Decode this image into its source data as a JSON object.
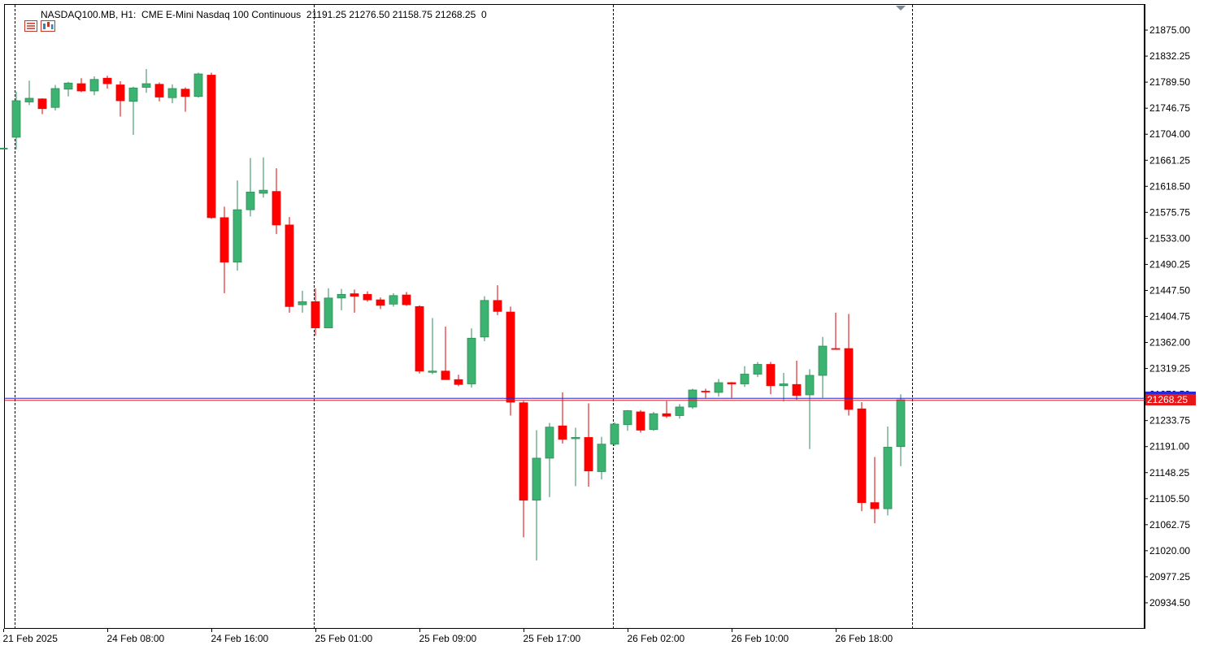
{
  "header": {
    "symbol": "NASDAQ100.MB, H1:",
    "description": "CME E-Mini Nasdaq 100 Continuous",
    "ohlc": "21191.25 21276.50 21158.75 21268.25",
    "volume": "0"
  },
  "icons": [
    "menu-icon",
    "chart-properties-icon",
    "scroll-marker-icon"
  ],
  "colors": {
    "bull": "#3cb371",
    "bear": "#ff0000",
    "wick_bull": "#2e8b57",
    "wick_bear": "#e00000",
    "bid_line": "#2424d0",
    "ask_line": "#e02020",
    "price_tag": "#e81818",
    "separator": "#000000"
  },
  "current_price_label": "21268.25",
  "chart_data": {
    "type": "candlestick",
    "title": "",
    "xlabel": "",
    "ylabel": "",
    "ylim": [
      20891.75,
      21917.75
    ],
    "y_ticks": [
      "21875.00",
      "21832.25",
      "21789.50",
      "21746.75",
      "21704.00",
      "21661.25",
      "21618.50",
      "21575.75",
      "21533.00",
      "21490.25",
      "21447.50",
      "21404.75",
      "21362.00",
      "21319.25",
      "21276.50",
      "21233.75",
      "21191.00",
      "21148.25",
      "21105.50",
      "21062.75",
      "21020.00",
      "20977.25",
      "20934.50"
    ],
    "x_labels": [
      {
        "index": 0,
        "label": "21 Feb 2025"
      },
      {
        "index": 8,
        "label": "24 Feb 08:00"
      },
      {
        "index": 16,
        "label": "24 Feb 16:00"
      },
      {
        "index": 24,
        "label": "25 Feb 01:00"
      },
      {
        "index": 32,
        "label": "25 Feb 09:00"
      },
      {
        "index": 40,
        "label": "25 Feb 17:00"
      },
      {
        "index": 48,
        "label": "26 Feb 02:00"
      },
      {
        "index": 56,
        "label": "26 Feb 10:00"
      },
      {
        "index": 64,
        "label": "26 Feb 18:00"
      }
    ],
    "day_separators": [
      0.9,
      23.9,
      46.9,
      69.9
    ],
    "current_price": 21268.25,
    "candles": [
      {
        "o": 21681.0,
        "h": 21682.0,
        "l": 21680.0,
        "c": 21681.0
      },
      {
        "o": 21699.0,
        "h": 21774.0,
        "l": 21679.0,
        "c": 21759.0
      },
      {
        "o": 21757.0,
        "h": 21792.0,
        "l": 21752.0,
        "c": 21763.0
      },
      {
        "o": 21762.0,
        "h": 21763.0,
        "l": 21737.0,
        "c": 21746.0
      },
      {
        "o": 21748.0,
        "h": 21785.0,
        "l": 21743.0,
        "c": 21779.0
      },
      {
        "o": 21778.0,
        "h": 21790.0,
        "l": 21766.0,
        "c": 21788.0
      },
      {
        "o": 21787.0,
        "h": 21796.0,
        "l": 21773.0,
        "c": 21775.0
      },
      {
        "o": 21775.0,
        "h": 21799.0,
        "l": 21768.0,
        "c": 21794.0
      },
      {
        "o": 21796.0,
        "h": 21800.0,
        "l": 21779.0,
        "c": 21787.0
      },
      {
        "o": 21785.0,
        "h": 21791.0,
        "l": 21733.0,
        "c": 21759.0
      },
      {
        "o": 21758.0,
        "h": 21782.0,
        "l": 21703.0,
        "c": 21780.0
      },
      {
        "o": 21781.0,
        "h": 21811.0,
        "l": 21772.0,
        "c": 21787.0
      },
      {
        "o": 21786.0,
        "h": 21789.0,
        "l": 21758.0,
        "c": 21765.0
      },
      {
        "o": 21764.0,
        "h": 21786.0,
        "l": 21755.0,
        "c": 21779.0
      },
      {
        "o": 21778.0,
        "h": 21781.0,
        "l": 21741.0,
        "c": 21766.0
      },
      {
        "o": 21766.0,
        "h": 21805.0,
        "l": 21764.0,
        "c": 21803.0
      },
      {
        "o": 21801.0,
        "h": 21805.0,
        "l": 21565.0,
        "c": 21567.0
      },
      {
        "o": 21567.0,
        "h": 21585.0,
        "l": 21443.0,
        "c": 21494.0
      },
      {
        "o": 21494.0,
        "h": 21628.0,
        "l": 21480.0,
        "c": 21580.0
      },
      {
        "o": 21580.0,
        "h": 21665.0,
        "l": 21569.0,
        "c": 21609.0
      },
      {
        "o": 21607.0,
        "h": 21666.0,
        "l": 21600.0,
        "c": 21612.0
      },
      {
        "o": 21610.0,
        "h": 21648.0,
        "l": 21540.0,
        "c": 21555.0
      },
      {
        "o": 21555.0,
        "h": 21568.0,
        "l": 21411.0,
        "c": 21421.0
      },
      {
        "o": 21424.0,
        "h": 21447.0,
        "l": 21411.0,
        "c": 21429.0
      },
      {
        "o": 21429.0,
        "h": 21451.0,
        "l": 21373.0,
        "c": 21386.0
      },
      {
        "o": 21386.0,
        "h": 21451.0,
        "l": 21386.0,
        "c": 21435.0
      },
      {
        "o": 21435.0,
        "h": 21450.0,
        "l": 21415.0,
        "c": 21441.0
      },
      {
        "o": 21442.0,
        "h": 21449.0,
        "l": 21411.0,
        "c": 21438.0
      },
      {
        "o": 21441.0,
        "h": 21446.0,
        "l": 21429.0,
        "c": 21432.0
      },
      {
        "o": 21432.0,
        "h": 21436.0,
        "l": 21417.0,
        "c": 21423.0
      },
      {
        "o": 21425.0,
        "h": 21443.0,
        "l": 21421.0,
        "c": 21439.0
      },
      {
        "o": 21440.0,
        "h": 21445.0,
        "l": 21422.0,
        "c": 21424.0
      },
      {
        "o": 21421.0,
        "h": 21423.0,
        "l": 21311.0,
        "c": 21315.0
      },
      {
        "o": 21313.0,
        "h": 21402.0,
        "l": 21310.0,
        "c": 21315.0
      },
      {
        "o": 21315.0,
        "h": 21388.0,
        "l": 21307.0,
        "c": 21301.0
      },
      {
        "o": 21301.0,
        "h": 21309.0,
        "l": 21290.0,
        "c": 21293.0
      },
      {
        "o": 21294.0,
        "h": 21385.0,
        "l": 21288.0,
        "c": 21369.0
      },
      {
        "o": 21371.0,
        "h": 21438.0,
        "l": 21364.0,
        "c": 21431.0
      },
      {
        "o": 21431.0,
        "h": 21456.0,
        "l": 21407.0,
        "c": 21413.0
      },
      {
        "o": 21412.0,
        "h": 21421.0,
        "l": 21242.0,
        "c": 21264.0
      },
      {
        "o": 21263.0,
        "h": 21266.0,
        "l": 21042.0,
        "c": 21103.0
      },
      {
        "o": 21103.0,
        "h": 21218.0,
        "l": 21004.0,
        "c": 21172.0
      },
      {
        "o": 21172.0,
        "h": 21230.0,
        "l": 21108.0,
        "c": 21223.0
      },
      {
        "o": 21225.0,
        "h": 21280.0,
        "l": 21196.0,
        "c": 21203.0
      },
      {
        "o": 21204.0,
        "h": 21222.0,
        "l": 21126.0,
        "c": 21206.0
      },
      {
        "o": 21206.0,
        "h": 21262.0,
        "l": 21125.0,
        "c": 21151.0
      },
      {
        "o": 21150.0,
        "h": 21207.0,
        "l": 21137.0,
        "c": 21195.0
      },
      {
        "o": 21195.0,
        "h": 21231.0,
        "l": 21192.0,
        "c": 21228.0
      },
      {
        "o": 21227.0,
        "h": 21251.0,
        "l": 21217.0,
        "c": 21250.0
      },
      {
        "o": 21248.0,
        "h": 21251.0,
        "l": 21214.0,
        "c": 21218.0
      },
      {
        "o": 21219.0,
        "h": 21248.0,
        "l": 21217.0,
        "c": 21245.0
      },
      {
        "o": 21245.0,
        "h": 21266.0,
        "l": 21238.0,
        "c": 21241.0
      },
      {
        "o": 21242.0,
        "h": 21261.0,
        "l": 21237.0,
        "c": 21256.0
      },
      {
        "o": 21256.0,
        "h": 21286.0,
        "l": 21253.0,
        "c": 21284.0
      },
      {
        "o": 21282.0,
        "h": 21286.0,
        "l": 21271.0,
        "c": 21281.0
      },
      {
        "o": 21280.0,
        "h": 21302.0,
        "l": 21273.0,
        "c": 21296.0
      },
      {
        "o": 21296.0,
        "h": 21297.0,
        "l": 21271.0,
        "c": 21294.0
      },
      {
        "o": 21294.0,
        "h": 21323.0,
        "l": 21289.0,
        "c": 21310.0
      },
      {
        "o": 21310.0,
        "h": 21330.0,
        "l": 21305.0,
        "c": 21326.0
      },
      {
        "o": 21326.0,
        "h": 21330.0,
        "l": 21277.0,
        "c": 21291.0
      },
      {
        "o": 21291.0,
        "h": 21312.0,
        "l": 21265.0,
        "c": 21294.0
      },
      {
        "o": 21293.0,
        "h": 21332.0,
        "l": 21268.0,
        "c": 21275.0
      },
      {
        "o": 21276.0,
        "h": 21318.0,
        "l": 21187.0,
        "c": 21308.0
      },
      {
        "o": 21308.0,
        "h": 21371.0,
        "l": 21271.0,
        "c": 21356.0
      },
      {
        "o": 21352.0,
        "h": 21411.0,
        "l": 21350.0,
        "c": 21351.0
      },
      {
        "o": 21352.0,
        "h": 21409.0,
        "l": 21242.0,
        "c": 21252.0
      },
      {
        "o": 21253.0,
        "h": 21264.0,
        "l": 21085.0,
        "c": 21099.0
      },
      {
        "o": 21099.0,
        "h": 21174.0,
        "l": 21065.0,
        "c": 21089.0
      },
      {
        "o": 21089.0,
        "h": 21224.0,
        "l": 21078.0,
        "c": 21190.0
      },
      {
        "o": 21191.0,
        "h": 21277.0,
        "l": 21159.0,
        "c": 21268.0
      }
    ]
  }
}
